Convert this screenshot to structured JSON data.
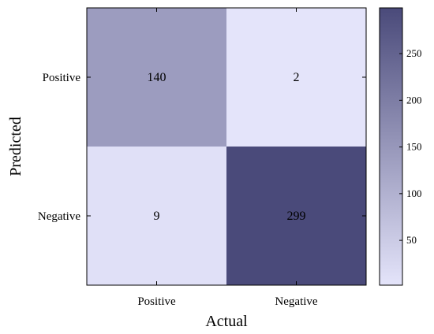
{
  "chart_data": {
    "type": "heatmap",
    "xlabel": "Actual",
    "ylabel": "Predicted",
    "x_categories": [
      "Positive",
      "Negative"
    ],
    "y_categories": [
      "Positive",
      "Negative"
    ],
    "values": [
      [
        140,
        2
      ],
      [
        9,
        299
      ]
    ],
    "value_range": [
      2,
      299
    ],
    "colorbar": {
      "ticks": [
        50,
        100,
        150,
        200,
        250
      ],
      "low_color": "#e4e4fa",
      "high_color": "#4a4a7a"
    }
  }
}
